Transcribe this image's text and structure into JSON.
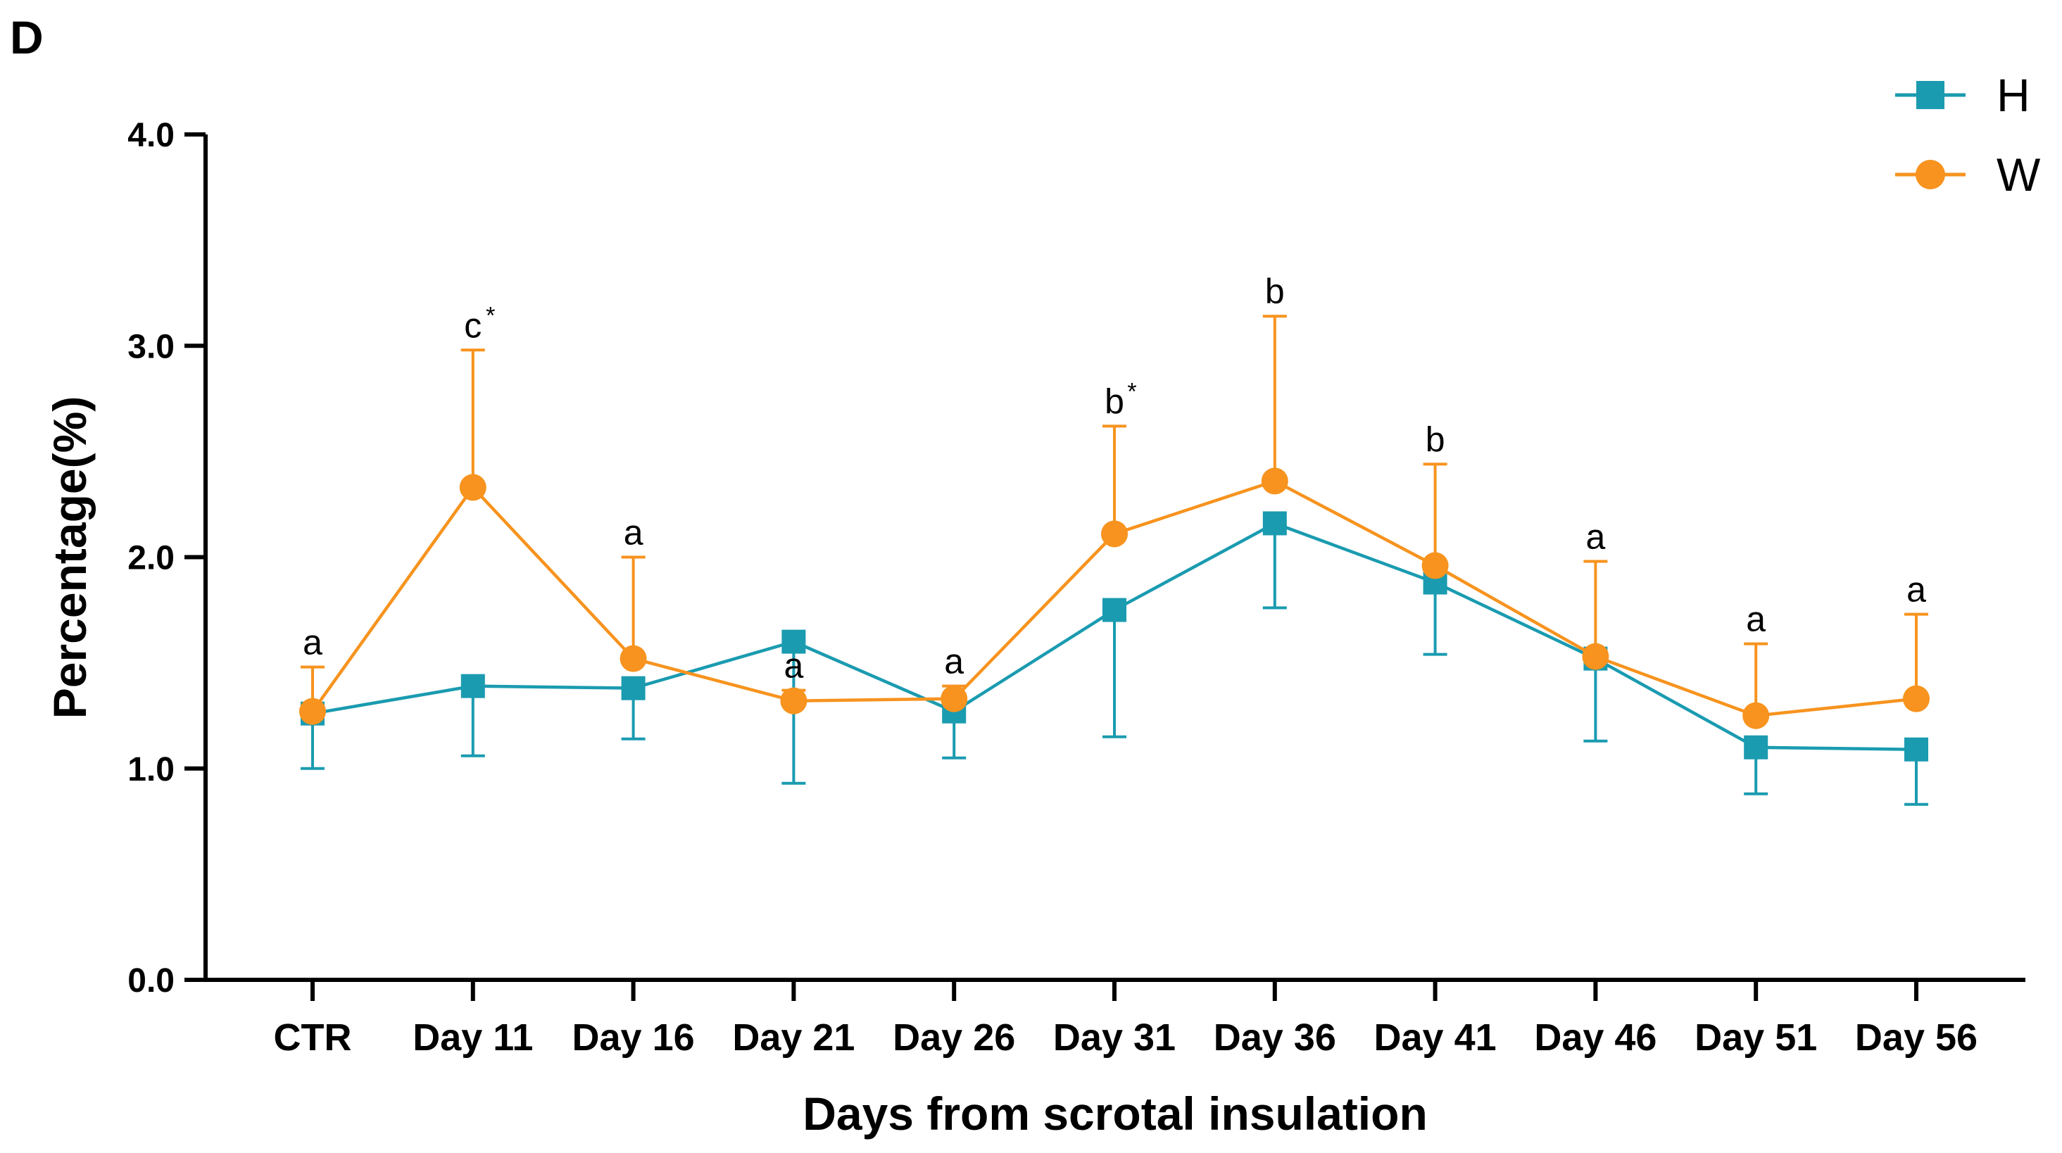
{
  "panel_label": "D",
  "chart_data": {
    "type": "line",
    "title": "",
    "xlabel": "Days from scrotal insulation",
    "ylabel": "Percentage(%)",
    "ylim": [
      0,
      4
    ],
    "yticks": [
      "0.0",
      "1.0",
      "2.0",
      "3.0",
      "4.0"
    ],
    "yticks_values": [
      0,
      1,
      2,
      3,
      4
    ],
    "categories": [
      "CTR",
      "Day 11",
      "Day 16",
      "Day 21",
      "Day 26",
      "Day 31",
      "Day 36",
      "Day 41",
      "Day 46",
      "Day 51",
      "Day 56"
    ],
    "legend_position": "top-right",
    "series": [
      {
        "name": "H",
        "color": "#1a9bb0",
        "marker": "square",
        "values": [
          1.26,
          1.39,
          1.38,
          1.6,
          1.27,
          1.75,
          2.16,
          1.88,
          1.52,
          1.1,
          1.09
        ],
        "error": [
          0.26,
          0.33,
          0.24,
          0.67,
          0.22,
          0.6,
          0.4,
          0.34,
          0.39,
          0.22,
          0.26
        ],
        "error_direction": "down"
      },
      {
        "name": "W",
        "color": "#f7931e",
        "marker": "circle",
        "values": [
          1.27,
          2.33,
          1.52,
          1.32,
          1.33,
          2.11,
          2.36,
          1.96,
          1.53,
          1.25,
          1.33
        ],
        "error": [
          0.21,
          0.65,
          0.48,
          0.05,
          0.06,
          0.51,
          0.78,
          0.48,
          0.45,
          0.34,
          0.4
        ],
        "error_direction": "up"
      }
    ],
    "annotations": [
      {
        "category": "CTR",
        "text": "a",
        "star": "",
        "y": 1.48
      },
      {
        "category": "Day 11",
        "text": "c",
        "star": "*",
        "y": 2.98
      },
      {
        "category": "Day 16",
        "text": "a",
        "star": "",
        "y": 2.0
      },
      {
        "category": "Day 21",
        "text": "a",
        "star": "",
        "y": 1.37
      },
      {
        "category": "Day 26",
        "text": "a",
        "star": "",
        "y": 1.39
      },
      {
        "category": "Day 31",
        "text": "b",
        "star": "*",
        "y": 2.62
      },
      {
        "category": "Day 36",
        "text": "b",
        "star": "",
        "y": 3.14
      },
      {
        "category": "Day 41",
        "text": "b",
        "star": "",
        "y": 2.44
      },
      {
        "category": "Day 46",
        "text": "a",
        "star": "",
        "y": 1.98
      },
      {
        "category": "Day 51",
        "text": "a",
        "star": "",
        "y": 1.59
      },
      {
        "category": "Day 56",
        "text": "a",
        "star": "",
        "y": 1.73
      }
    ]
  }
}
